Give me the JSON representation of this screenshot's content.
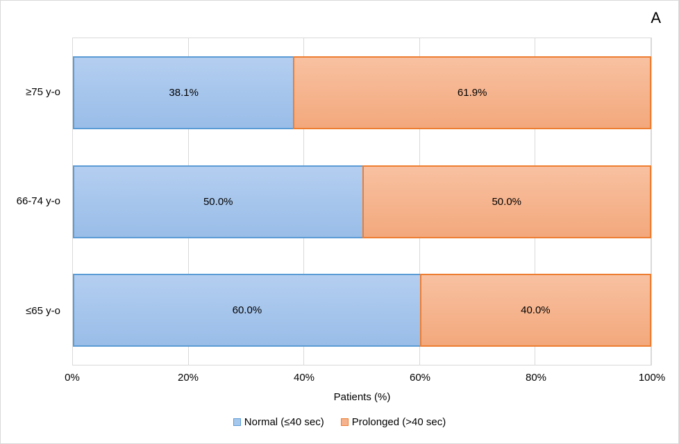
{
  "panel_label": "A",
  "chart_data": {
    "type": "bar",
    "orientation": "horizontal",
    "stacked": true,
    "title": "",
    "categories": [
      "≥75 y-o",
      "66-74 y-o",
      "≤65 y-o"
    ],
    "series": [
      {
        "name": "Normal (≤40 sec)",
        "values": [
          38.1,
          50.0,
          60.0
        ],
        "labels": [
          "38.1%",
          "50.0%",
          "60.0%"
        ],
        "fill_top": "#B4CEF0",
        "fill_bottom": "#99BDE8",
        "border": "#5B9BD5",
        "legend_fill": "#A5C8EC"
      },
      {
        "name": "Prolonged (>40 sec)",
        "values": [
          61.9,
          50.0,
          40.0
        ],
        "labels": [
          "61.9%",
          "50.0%",
          "40.0%"
        ],
        "fill_top": "#F8C1A1",
        "fill_bottom": "#F3A87C",
        "border": "#ED7D31",
        "legend_fill": "#F5B28C"
      }
    ],
    "xlabel": "Patients (%)",
    "x_ticks": [
      "0%",
      "20%",
      "40%",
      "60%",
      "80%",
      "100%"
    ],
    "xlim": [
      0,
      100
    ],
    "grid": true,
    "legend_position": "bottom",
    "colors": {
      "gridline": "#D9D9D9",
      "plot_border": "#D9D9D9",
      "chart_border": "#D9D9D9",
      "text": "#000000"
    }
  }
}
